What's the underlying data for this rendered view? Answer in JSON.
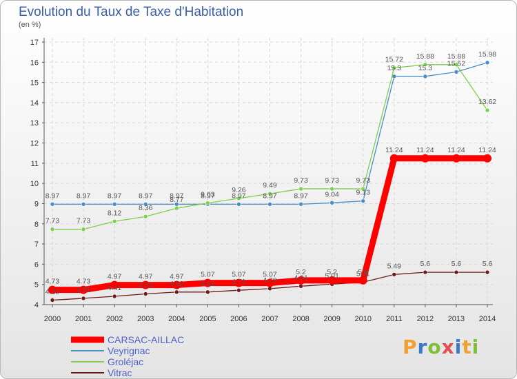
{
  "chart_data": {
    "type": "line",
    "title": "Evolution du Taux de Taxe d'Habitation",
    "subtitle": "(en %)",
    "ylim": [
      4,
      17
    ],
    "yticks": [
      4,
      5,
      6,
      7,
      8,
      9,
      10,
      11,
      12,
      13,
      14,
      15,
      16,
      17
    ],
    "categories": [
      "2000",
      "2001",
      "2002",
      "2003",
      "2004",
      "2005",
      "2006",
      "2007",
      "2008",
      "2009",
      "2010",
      "2011",
      "2012",
      "2013",
      "2014"
    ],
    "grid": true,
    "legend_position": "bottom-left",
    "series": [
      {
        "name": "Veyrignac",
        "color": "#4a8cc8",
        "values": [
          8.97,
          8.97,
          8.97,
          8.97,
          8.97,
          8.97,
          8.97,
          8.97,
          8.97,
          9.04,
          9.13,
          15.3,
          15.3,
          15.52,
          15.98
        ],
        "labels": [
          "8.97",
          "8.97",
          "8.97",
          "8.97",
          "8.97",
          "8.97",
          "8.97",
          "8.97",
          "8.97",
          "9.04",
          "9.13",
          "15.3",
          "15.3",
          "15.52",
          "15.98"
        ]
      },
      {
        "name": "Groléjac",
        "color": "#7ccf4c",
        "values": [
          7.73,
          7.73,
          8.12,
          8.36,
          8.77,
          9.03,
          9.26,
          9.49,
          9.73,
          9.73,
          9.73,
          15.72,
          15.88,
          15.88,
          13.62
        ],
        "labels": [
          "7.73",
          "7.73",
          "8.12",
          "8.36",
          "8.77",
          "9.03",
          "9.26",
          "9.49",
          "9.73",
          "9.73",
          "9.73",
          "15.72",
          "15.88",
          "15.88",
          "13.62"
        ]
      },
      {
        "name": "Vitrac",
        "color": "#6b1a1a",
        "values": [
          4.22,
          4.31,
          4.41,
          4.53,
          4.62,
          4.62,
          4.71,
          4.79,
          4.91,
          5.01,
          5.11,
          5.49,
          5.6,
          5.6,
          5.6
        ],
        "labels": [
          "4.22",
          "4.31",
          "4.41",
          "4.53",
          "4.62",
          "4.62",
          "4.71",
          "4.79",
          "4.91",
          "5.01",
          "5.11",
          "5.49",
          "5.6",
          "5.6",
          "5.6"
        ]
      },
      {
        "name": "CARSAC-AILLAC",
        "color": "#ff0000",
        "values": [
          4.73,
          4.73,
          4.97,
          4.97,
          4.97,
          5.07,
          5.07,
          5.07,
          5.2,
          5.2,
          5.2,
          11.24,
          11.24,
          11.24,
          11.24
        ],
        "labels": [
          "4.73",
          "4.73",
          "4.97",
          "4.97",
          "4.97",
          "5.07",
          "5.07",
          "5.07",
          "5.2",
          "5.2",
          "5.2",
          "11.24",
          "11.24",
          "11.24",
          "11.24"
        ]
      }
    ],
    "legend_order": [
      "CARSAC-AILLAC",
      "Veyrignac",
      "Groléjac",
      "Vitrac"
    ]
  },
  "logo": {
    "letters": [
      "P",
      "r",
      "o",
      "x",
      "i",
      "t",
      "i"
    ],
    "colors": [
      "#f0a030",
      "#3a78c8",
      "#7cbf3a",
      "#e05050",
      "#3a78c8",
      "#f0a030",
      "#7cbf3a"
    ]
  }
}
